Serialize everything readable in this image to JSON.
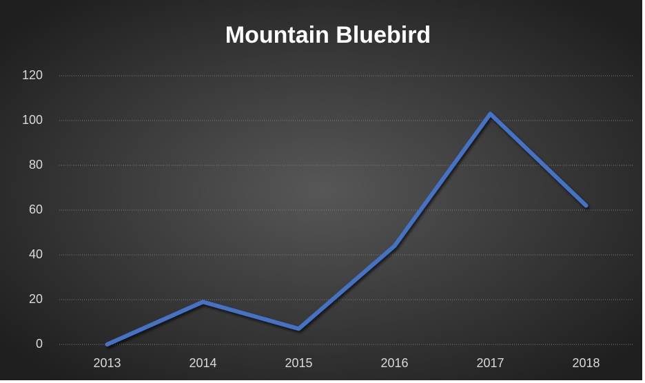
{
  "chart_data": {
    "type": "line",
    "title": "Mountain Bluebird",
    "categories": [
      "2013",
      "2014",
      "2015",
      "2016",
      "2017",
      "2018"
    ],
    "values": [
      0,
      19,
      7,
      44,
      103,
      62
    ],
    "color": "#4472c4",
    "ylim": [
      0,
      120
    ],
    "yticks": [
      0,
      20,
      40,
      60,
      80,
      100,
      120
    ],
    "grid": true
  }
}
